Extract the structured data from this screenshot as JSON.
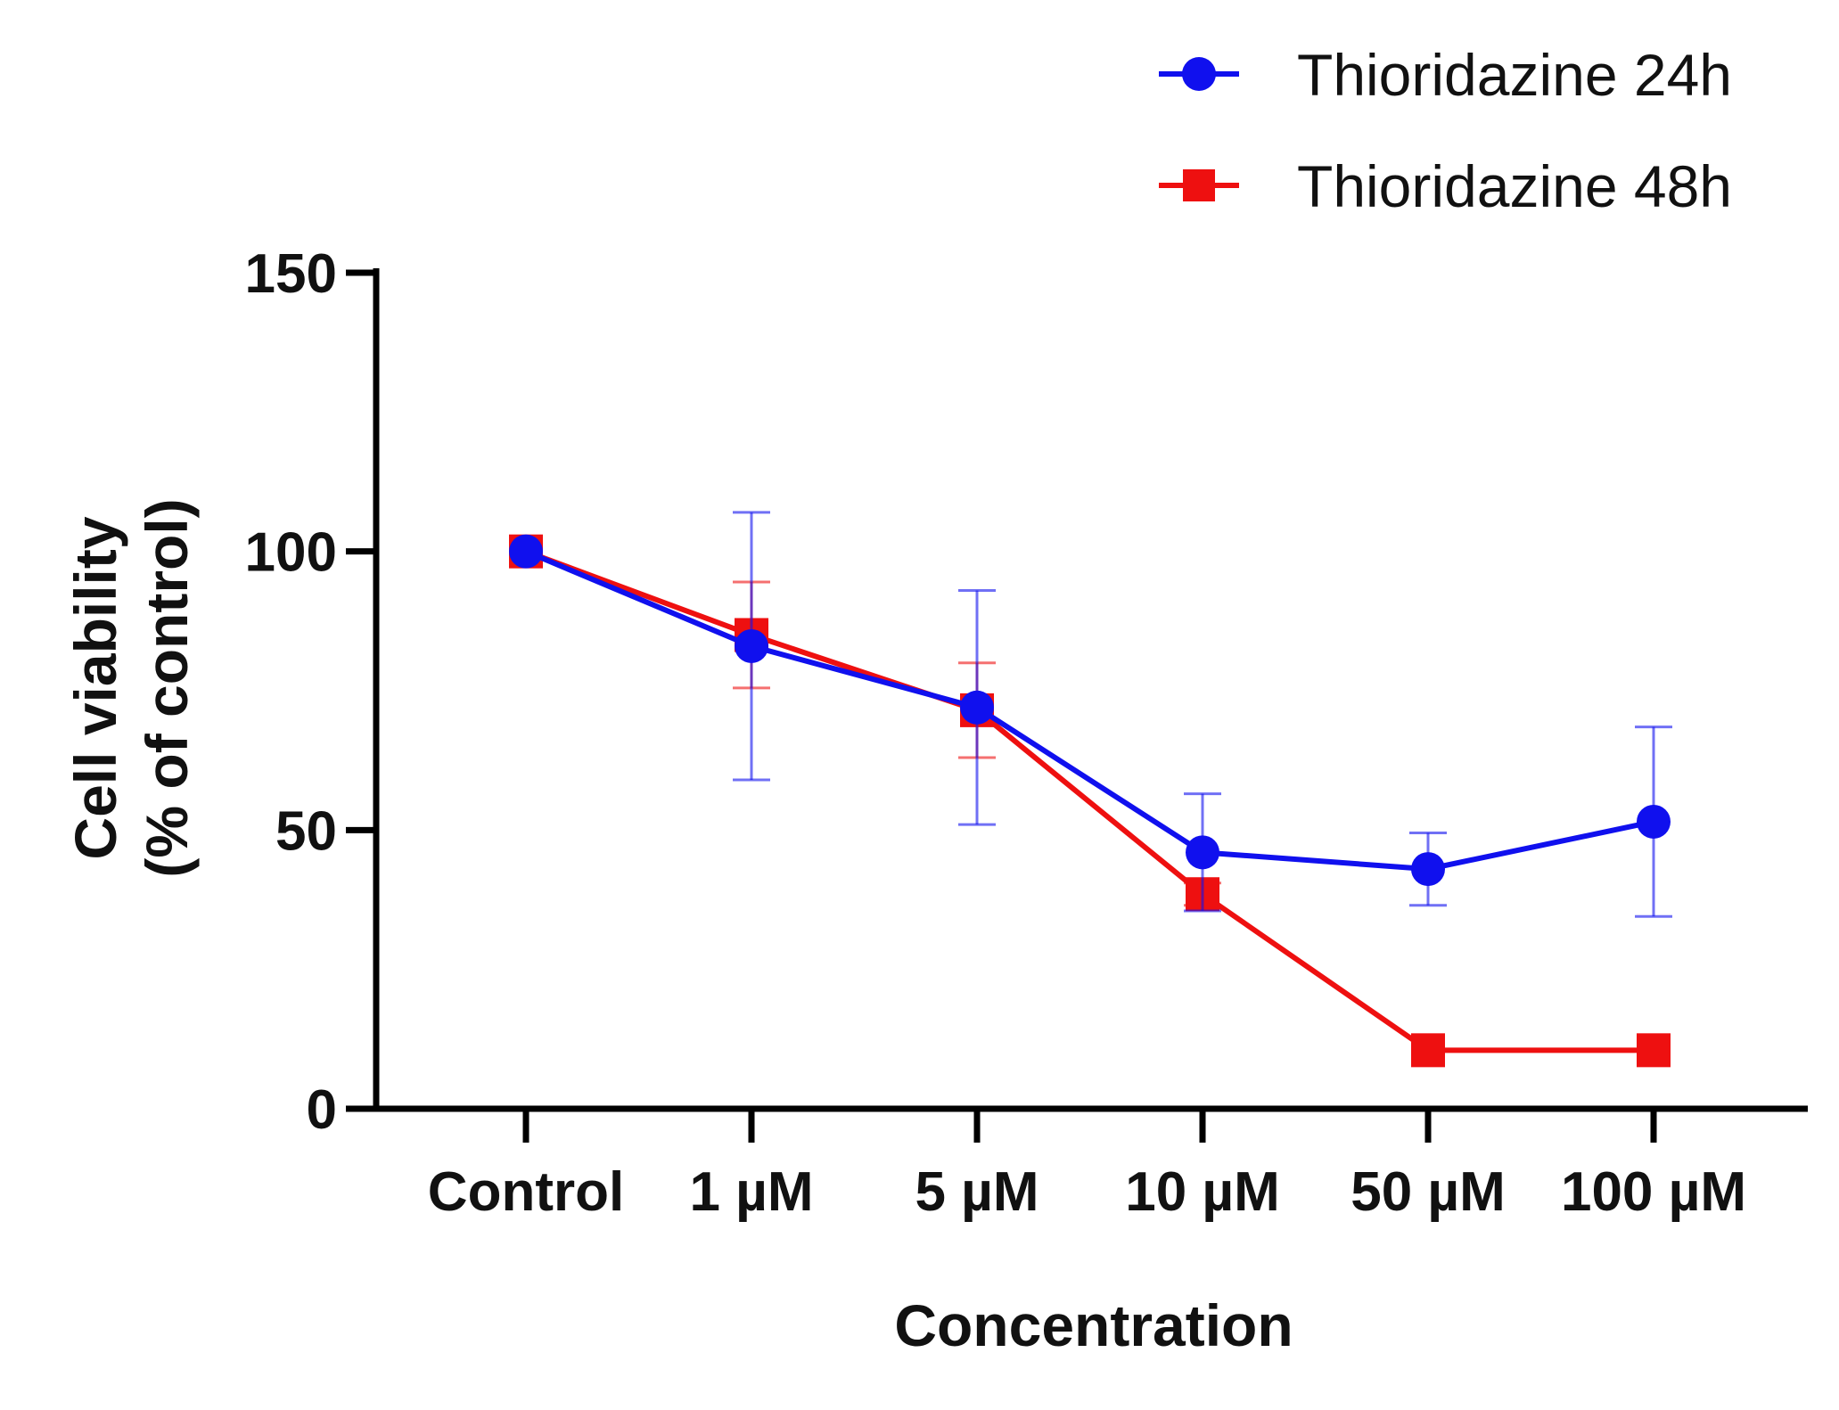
{
  "chart_data": {
    "type": "line",
    "title": "",
    "xlabel": "Concentration",
    "ylabel_line1": "Cell viability",
    "ylabel_line2": "(% of control)",
    "categories": [
      "Control",
      "1 µM",
      "5 µM",
      "10 µM",
      "50 µM",
      "100 µM"
    ],
    "yticks": [
      "0",
      "50",
      "100",
      "150"
    ],
    "ylim": [
      0,
      150
    ],
    "grid": false,
    "legend_position": "top-right",
    "series": [
      {
        "name": "Thioridazine 24h",
        "color": "#1010ee",
        "marker": "circle",
        "values": [
          100,
          83,
          72,
          46,
          43,
          51.5
        ],
        "errors": [
          0,
          24,
          21,
          10.5,
          6.5,
          17
        ]
      },
      {
        "name": "Thioridazine 48h",
        "color": "#ee1010",
        "marker": "square",
        "values": [
          100,
          85,
          71.5,
          38.5,
          10.5,
          10.5
        ],
        "errors": [
          0,
          9.5,
          8.5,
          2,
          0,
          0
        ]
      }
    ]
  }
}
